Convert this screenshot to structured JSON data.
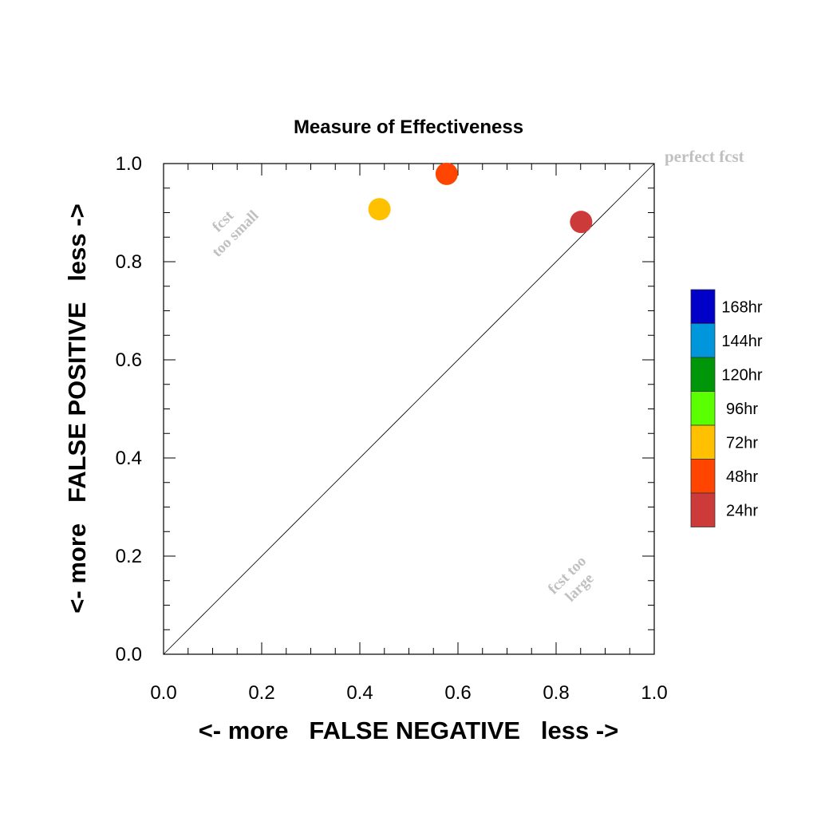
{
  "chart_data": {
    "type": "scatter",
    "title": "Measure of Effectiveness",
    "xlabel": "<- more   FALSE NEGATIVE   less ->",
    "ylabel": "<- more   FALSE POSITIVE   less ->",
    "xlim": [
      0.0,
      1.0
    ],
    "ylim": [
      0.0,
      1.0
    ],
    "x_ticks": [
      "0.0",
      "0.2",
      "0.4",
      "0.6",
      "0.8",
      "1.0"
    ],
    "y_ticks": [
      "0.0",
      "0.2",
      "0.4",
      "0.6",
      "0.8",
      "1.0"
    ],
    "grid": false,
    "reference_line": {
      "from": [
        0,
        0
      ],
      "to": [
        1,
        1
      ]
    },
    "annotations": {
      "perfect": "perfect fcst",
      "too_small_line1": "fcst",
      "too_small_line2": "too small",
      "too_large_line1": "fcst too",
      "too_large_line2": "large"
    },
    "points": [
      {
        "label": "72hr",
        "x": 0.44,
        "y": 0.907,
        "color": "#ffc000"
      },
      {
        "label": "48hr",
        "x": 0.577,
        "y": 0.979,
        "color": "#ff4500"
      },
      {
        "label": "24hr",
        "x": 0.851,
        "y": 0.881,
        "color": "#cd3a3a"
      }
    ],
    "legend": {
      "placement": "right",
      "entries": [
        {
          "label": "168hr",
          "color": "#0000c8"
        },
        {
          "label": "144hr",
          "color": "#0096dc"
        },
        {
          "label": "120hr",
          "color": "#00960a"
        },
        {
          "label": "96hr",
          "color": "#5aff00"
        },
        {
          "label": "72hr",
          "color": "#ffc000"
        },
        {
          "label": "48hr",
          "color": "#ff4500"
        },
        {
          "label": "24hr",
          "color": "#cd3a3a"
        }
      ]
    }
  }
}
